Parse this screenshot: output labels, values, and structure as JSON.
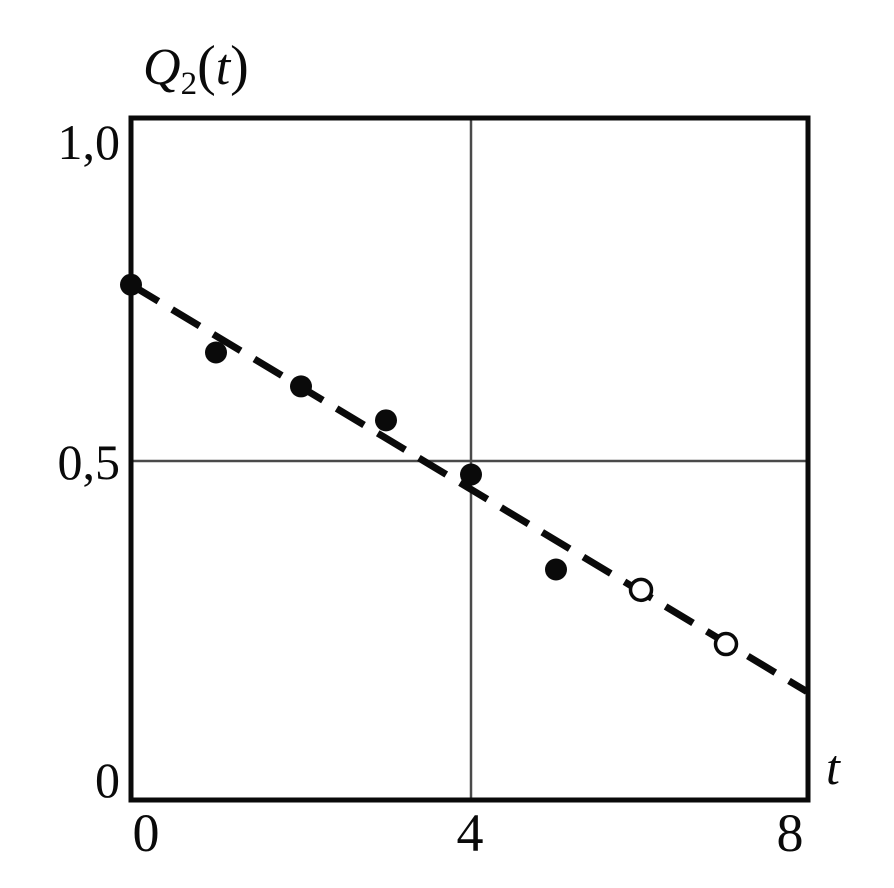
{
  "page": {
    "background": "#ffffff"
  },
  "chart_data": {
    "type": "scatter",
    "title": {
      "base": "Q",
      "sub": "2",
      "paren_open": "(",
      "var": "t",
      "paren_close": ")"
    },
    "xlabel": "t",
    "ylabel": "Q2(t)",
    "xlim": [
      0,
      8
    ],
    "ylim": [
      0,
      1.0
    ],
    "x_ticks": [
      {
        "value": 0,
        "label": "0"
      },
      {
        "value": 4,
        "label": "4"
      },
      {
        "value": 8,
        "label": "8"
      }
    ],
    "y_ticks": [
      {
        "value": 1.0,
        "label": "1,0"
      },
      {
        "value": 0.5,
        "label": "0,5"
      },
      {
        "value": 0,
        "label": "0"
      }
    ],
    "gridlines": {
      "x": [
        4
      ],
      "y": [
        0.5
      ],
      "grid_on": true
    },
    "series": [
      {
        "name": "measured-points-filled",
        "marker": "filled-circle",
        "points": [
          [
            0,
            0.76
          ],
          [
            1,
            0.66
          ],
          [
            2,
            0.61
          ],
          [
            3,
            0.56
          ],
          [
            4,
            0.48
          ],
          [
            5,
            0.34
          ]
        ]
      },
      {
        "name": "extrapolated-points-open",
        "marker": "open-circle",
        "points": [
          [
            6,
            0.31
          ],
          [
            7,
            0.23
          ]
        ]
      }
    ],
    "trend_line": {
      "style": "dashed",
      "from": [
        0,
        0.76
      ],
      "to": [
        7.95,
        0.16
      ]
    },
    "legend": "none",
    "colors": {
      "axis": "#0a0a0a",
      "grid": "#4a4a4a",
      "marker": "#0a0a0a",
      "open_marker_fill": "#ffffff"
    }
  }
}
